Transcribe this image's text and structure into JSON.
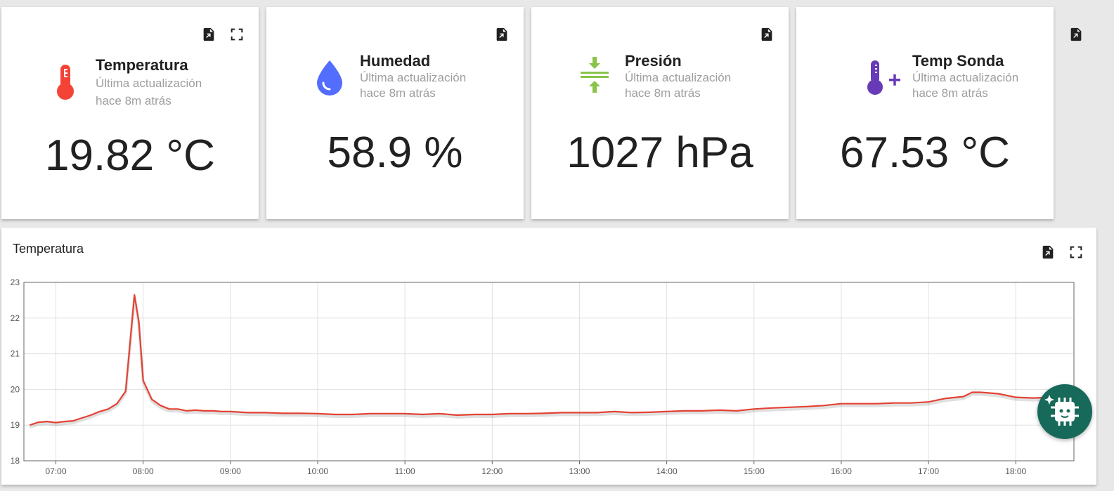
{
  "widgets": [
    {
      "title": "Temperatura",
      "subtitle_line1": "Última actualización",
      "subtitle_line2": "hace 8m atrás",
      "value": "19.82 °C",
      "icon": "thermometer-icon",
      "color": "#f44336"
    },
    {
      "title": "Humedad",
      "subtitle_line1": "Última actualización",
      "subtitle_line2": "hace 8m atrás",
      "value": "58.9 %",
      "icon": "water-drop-icon",
      "color": "#536dfe"
    },
    {
      "title": "Presión",
      "subtitle_line1": "Última actualización",
      "subtitle_line2": "hace 8m atrás",
      "value": "1027 hPa",
      "icon": "compress-icon",
      "color": "#8bc34a"
    },
    {
      "title": "Temp Sonda",
      "subtitle_line1": "Última actualización",
      "subtitle_line2": "hace 8m atrás",
      "value": "67.53 °C",
      "icon": "thermometer-plus-icon",
      "color": "#673ab7"
    }
  ],
  "chart": {
    "title": "Temperatura",
    "line_color": "#e34234"
  },
  "chart_data": {
    "type": "line",
    "title": "Temperatura",
    "xlabel": "",
    "ylabel": "",
    "ylim": [
      18,
      23
    ],
    "xlim": [
      "06:38",
      "18:40"
    ],
    "y_ticks": [
      "23",
      "22",
      "21",
      "20",
      "19",
      "18"
    ],
    "x_ticks": [
      "07:00",
      "08:00",
      "09:00",
      "10:00",
      "11:00",
      "12:00",
      "13:00",
      "14:00",
      "15:00",
      "16:00",
      "17:00",
      "18:00"
    ],
    "grid": true,
    "series": [
      {
        "x": [
          "06:42",
          "06:48",
          "06:54",
          "07:00",
          "07:06",
          "07:12",
          "07:18",
          "07:24",
          "07:30",
          "07:36",
          "07:42",
          "07:48",
          "07:54",
          "07:57",
          "08:00",
          "08:06",
          "08:12",
          "08:18",
          "08:24",
          "08:30",
          "08:36",
          "08:42",
          "08:48",
          "08:54",
          "09:00",
          "09:12",
          "09:24",
          "09:36",
          "09:48",
          "10:00",
          "10:12",
          "10:24",
          "10:36",
          "10:48",
          "11:00",
          "11:12",
          "11:24",
          "11:36",
          "11:48",
          "12:00",
          "12:12",
          "12:24",
          "12:36",
          "12:48",
          "13:00",
          "13:12",
          "13:24",
          "13:36",
          "13:48",
          "14:00",
          "14:12",
          "14:24",
          "14:36",
          "14:48",
          "15:00",
          "15:12",
          "15:24",
          "15:36",
          "15:48",
          "16:00",
          "16:12",
          "16:24",
          "16:36",
          "16:48",
          "17:00",
          "17:12",
          "17:24",
          "17:30",
          "17:36",
          "17:48",
          "18:00",
          "18:12",
          "18:24",
          "18:36"
        ],
        "y": [
          19.0,
          19.08,
          19.1,
          19.07,
          19.1,
          19.12,
          19.2,
          19.28,
          19.38,
          19.45,
          19.6,
          19.95,
          22.65,
          21.9,
          20.25,
          19.72,
          19.55,
          19.45,
          19.45,
          19.4,
          19.42,
          19.4,
          19.4,
          19.38,
          19.38,
          19.35,
          19.35,
          19.33,
          19.33,
          19.32,
          19.3,
          19.3,
          19.32,
          19.32,
          19.32,
          19.3,
          19.32,
          19.28,
          19.3,
          19.3,
          19.32,
          19.32,
          19.33,
          19.35,
          19.35,
          19.35,
          19.38,
          19.35,
          19.36,
          19.38,
          19.4,
          19.4,
          19.42,
          19.4,
          19.45,
          19.48,
          19.5,
          19.52,
          19.55,
          19.6,
          19.6,
          19.6,
          19.62,
          19.62,
          19.65,
          19.75,
          19.8,
          19.92,
          19.92,
          19.88,
          19.78,
          19.76,
          19.78,
          19.8
        ]
      }
    ]
  }
}
